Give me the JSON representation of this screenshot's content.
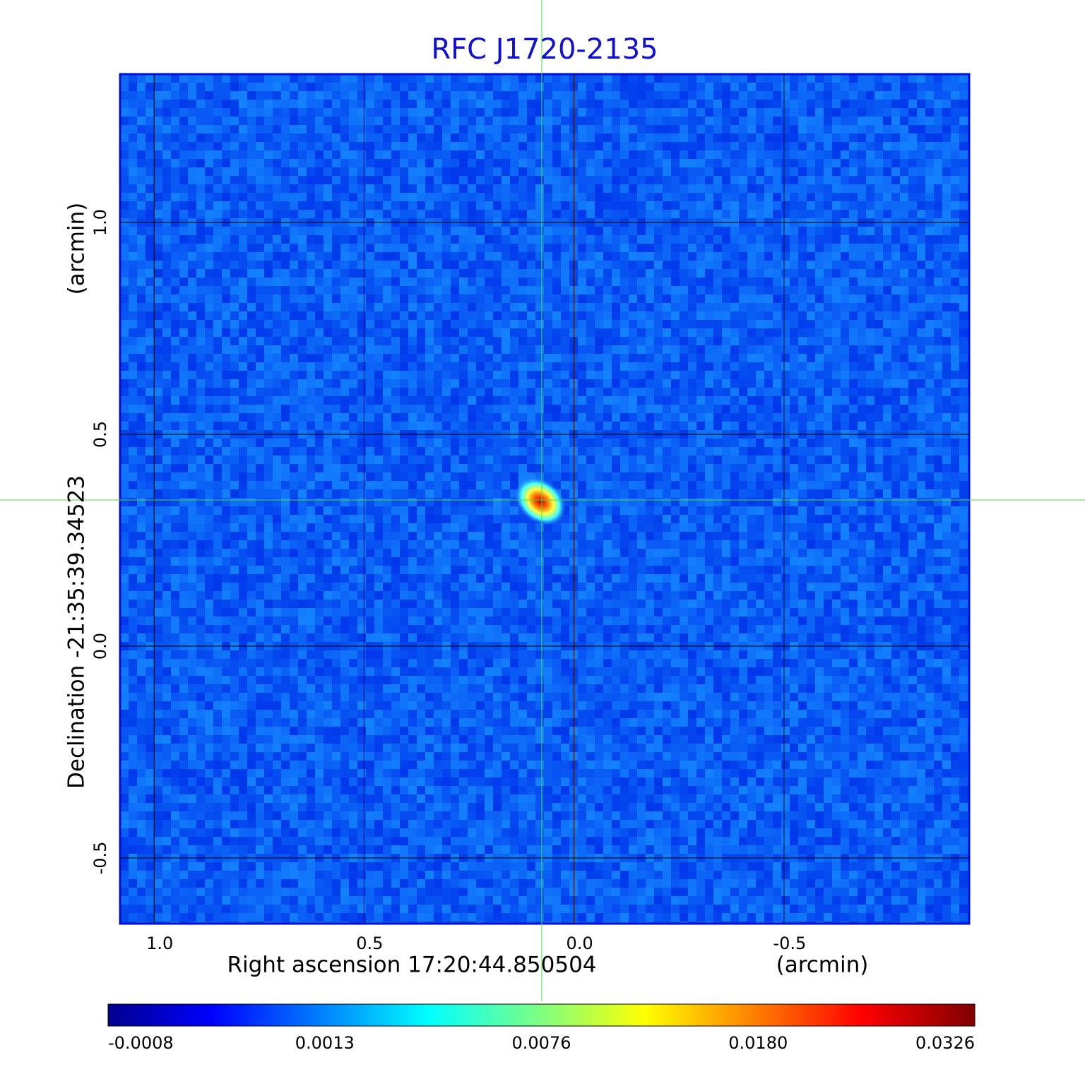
{
  "chart_data": {
    "type": "image",
    "title": "RFC J1720-2135",
    "xlabel": "Right ascension  17:20:44.850504",
    "xunit": "(arcmin)",
    "ylabel": "Declination  -21:35:39.34523",
    "yunit": "(arcmin)",
    "xlim": [
      1.081,
      -0.941
    ],
    "ylim": [
      -0.655,
      1.35
    ],
    "xticks": [
      {
        "value": 1,
        "label": "1.0"
      },
      0.5,
      {
        "value": 0,
        "label": "0.0"
      },
      -0.5
    ],
    "yticks": [
      -0.5,
      {
        "value": 0,
        "label": "0.0"
      },
      0.5,
      {
        "value": 1,
        "label": "1.0"
      }
    ],
    "grid": true,
    "colorbar_ticks": [
      -0.0008,
      0.0013,
      0.0076,
      {
        "value": 0.018,
        "label": "0.0180"
      },
      0.0326
    ]
  }
}
